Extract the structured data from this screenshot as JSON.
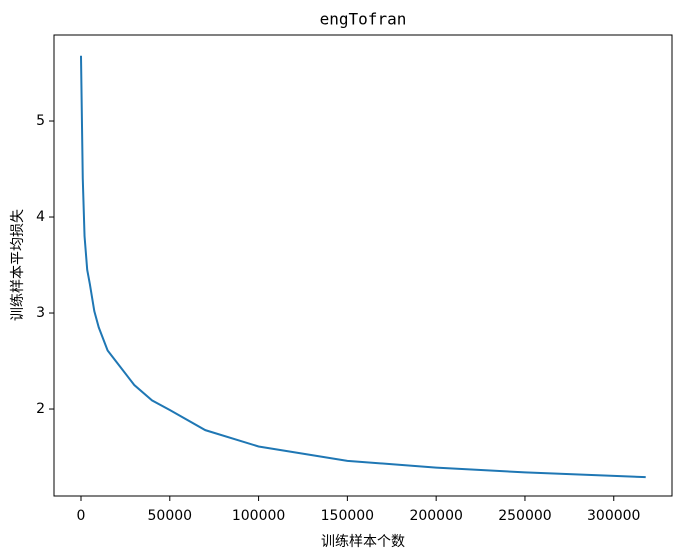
{
  "chart_data": {
    "type": "line",
    "title": "engTofran",
    "xlabel": "训练样本个数",
    "ylabel": "训练样本平均损失",
    "x": [
      0,
      1000,
      2000,
      3500,
      5000,
      7500,
      10000,
      15000,
      20000,
      30000,
      40000,
      50000,
      70000,
      100000,
      150000,
      200000,
      250000,
      318000
    ],
    "series": [
      {
        "name": "loss",
        "color": "#1f77b4",
        "values": [
          5.68,
          4.4,
          3.8,
          3.45,
          3.3,
          3.02,
          2.85,
          2.61,
          2.49,
          2.25,
          2.09,
          1.99,
          1.78,
          1.61,
          1.46,
          1.39,
          1.34,
          1.29
        ]
      }
    ],
    "xlim": [
      -15200,
      332800
    ],
    "ylim": [
      1.094,
      5.896
    ],
    "xticks": [
      0,
      50000,
      100000,
      150000,
      200000,
      250000,
      300000
    ],
    "yticks": [
      2,
      3,
      4,
      5
    ]
  }
}
